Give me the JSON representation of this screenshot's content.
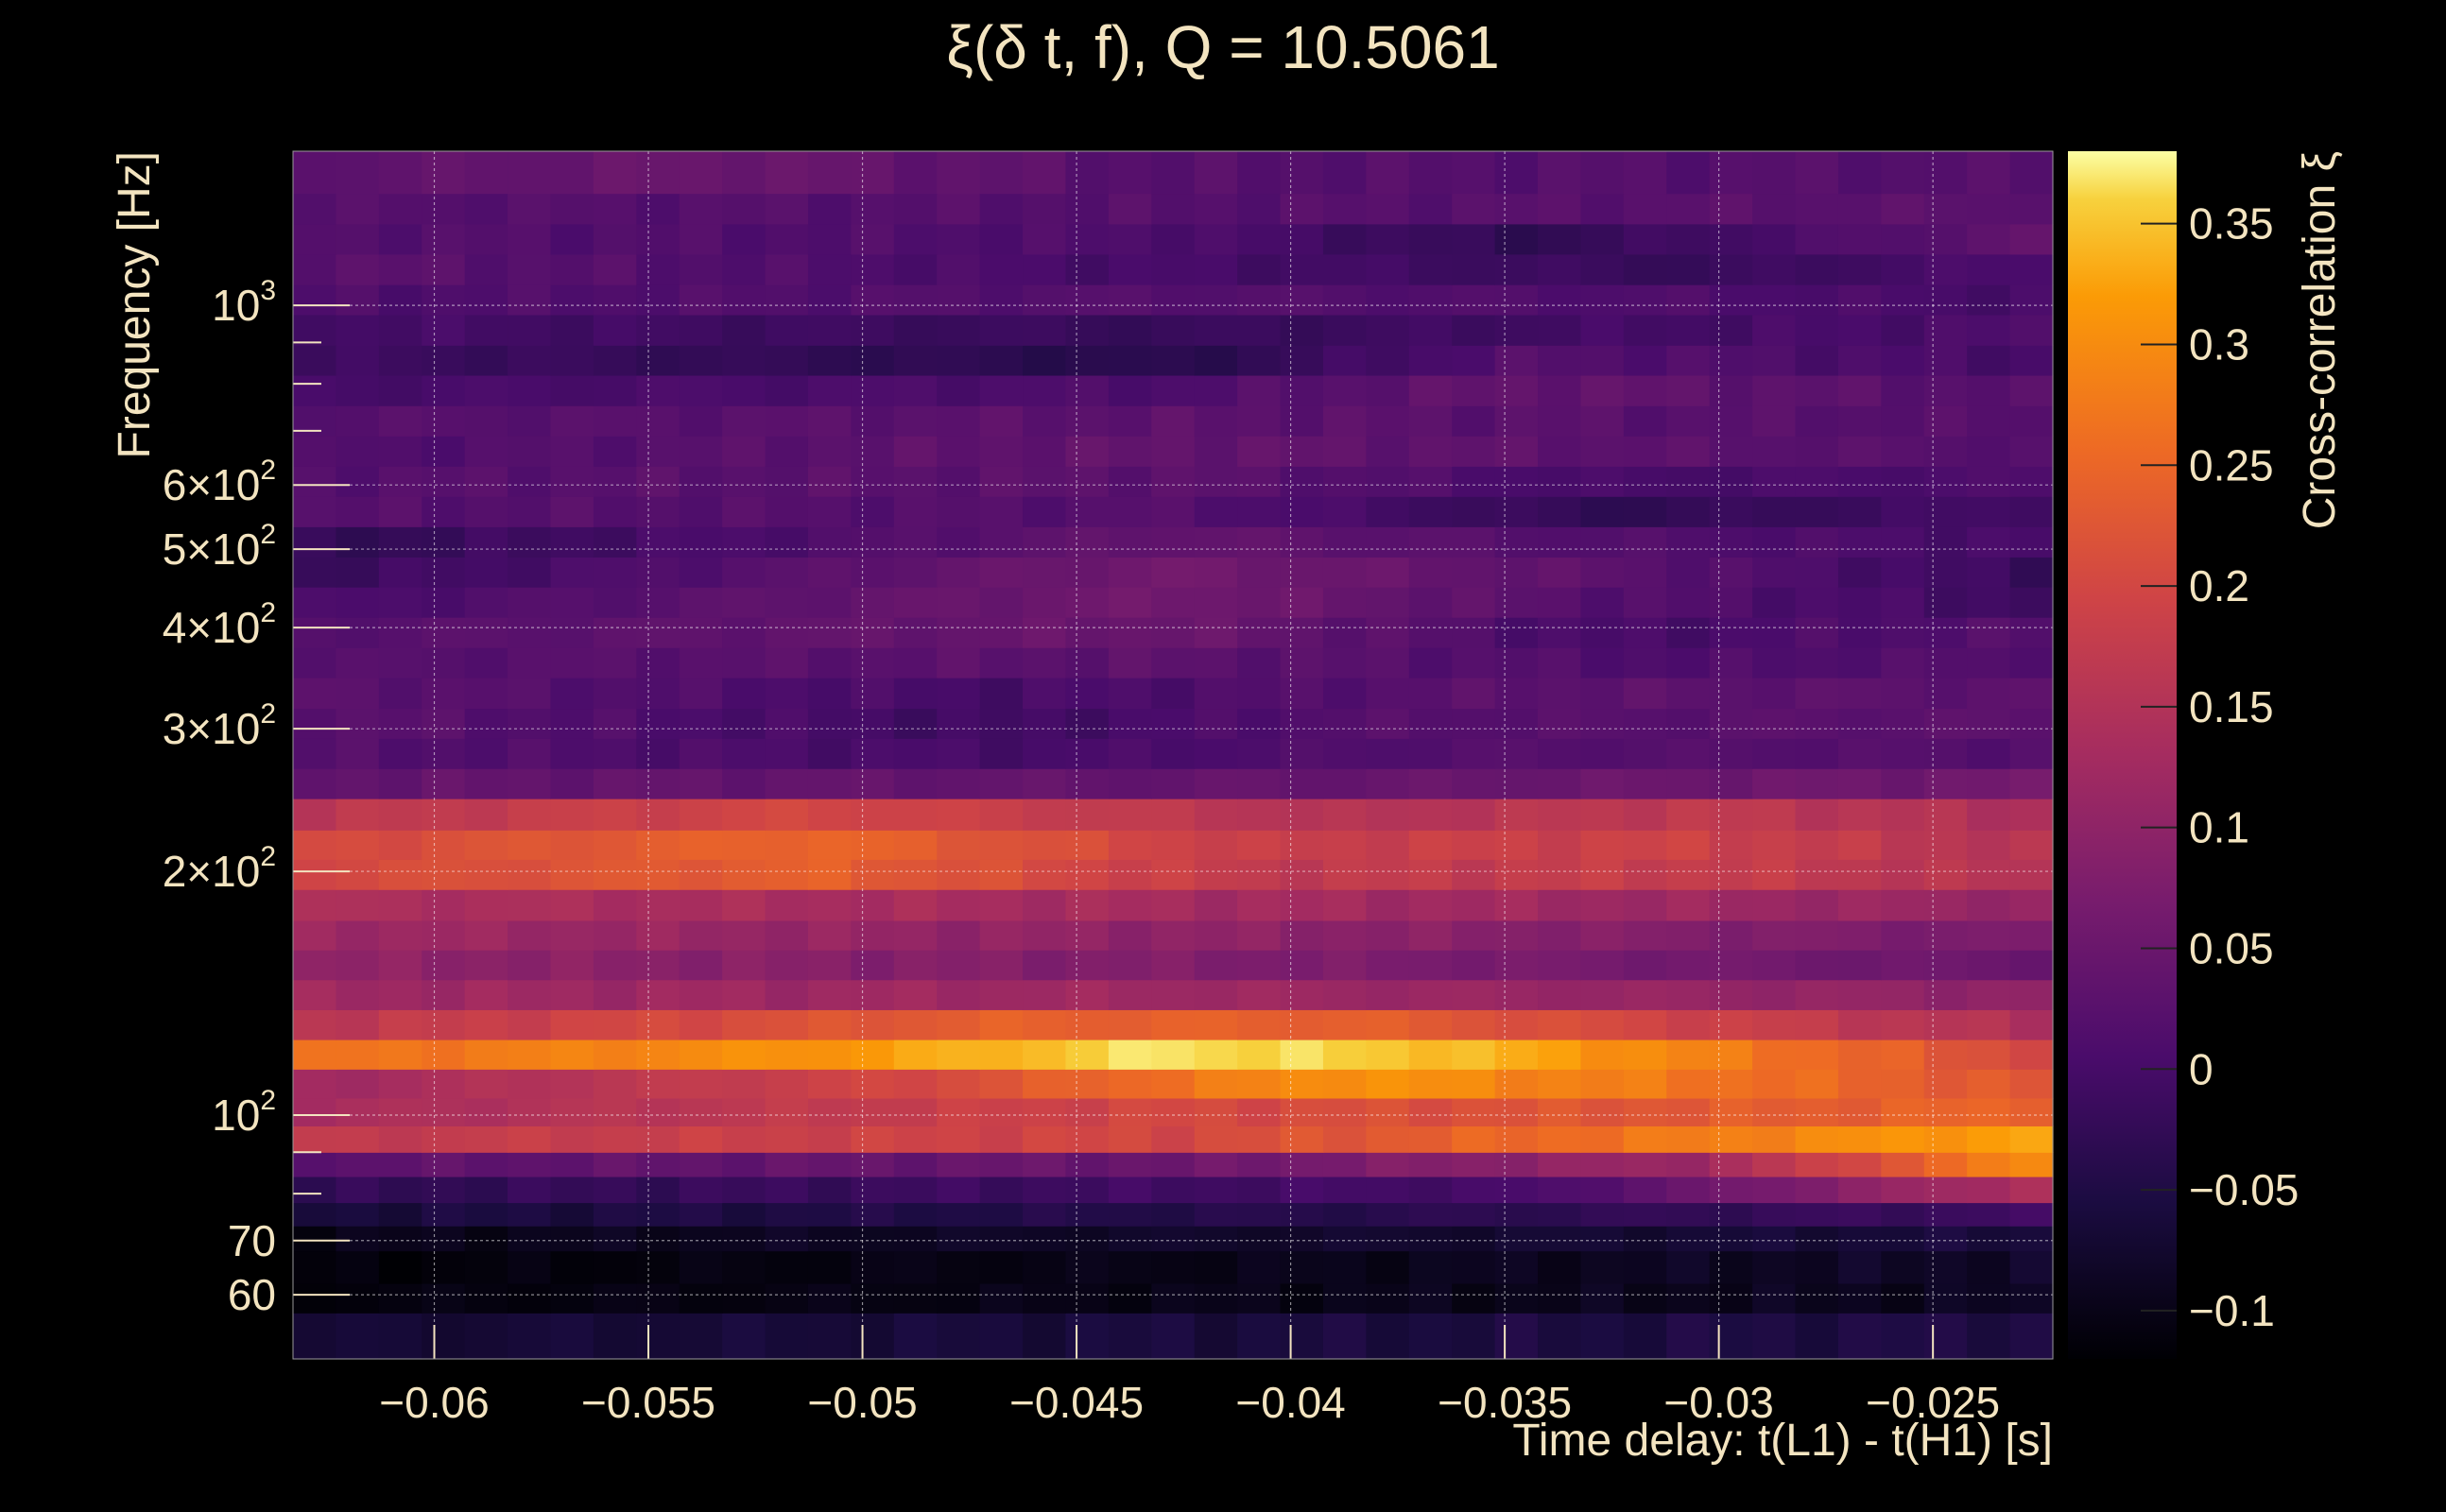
{
  "chart_data": {
    "type": "heatmap",
    "title": "ξ(δ t, f), Q = 10.5061",
    "xlabel": "Time delay: t(L1) - t(H1) [s]",
    "ylabel": "Frequency [Hz]",
    "zlabel": "Cross-correlation ξ",
    "x_range": [
      -0.0633,
      -0.0222
    ],
    "y_range": [
      50,
      1550
    ],
    "y_scale": "log",
    "z_range": [
      -0.12,
      0.38
    ],
    "x_ticks": [
      {
        "value": -0.06,
        "label": "−0.06"
      },
      {
        "value": -0.055,
        "label": "−0.055"
      },
      {
        "value": -0.05,
        "label": "−0.05"
      },
      {
        "value": -0.045,
        "label": "−0.045"
      },
      {
        "value": -0.04,
        "label": "−0.04"
      },
      {
        "value": -0.035,
        "label": "−0.035"
      },
      {
        "value": -0.03,
        "label": "−0.03"
      },
      {
        "value": -0.025,
        "label": "−0.025"
      }
    ],
    "y_ticks": [
      {
        "value": 60,
        "label": "60",
        "sup": ""
      },
      {
        "value": 70,
        "label": "70",
        "sup": ""
      },
      {
        "value": 100,
        "label": "10",
        "sup": "2"
      },
      {
        "value": 200,
        "label": "2×10",
        "sup": "2"
      },
      {
        "value": 300,
        "label": "3×10",
        "sup": "2"
      },
      {
        "value": 400,
        "label": "4×10",
        "sup": "2"
      },
      {
        "value": 500,
        "label": "5×10",
        "sup": "2"
      },
      {
        "value": 600,
        "label": "6×10",
        "sup": "2"
      },
      {
        "value": 1000,
        "label": "10",
        "sup": "3"
      }
    ],
    "z_ticks": [
      {
        "value": 0.35,
        "label": "0.35"
      },
      {
        "value": 0.3,
        "label": "0.3"
      },
      {
        "value": 0.25,
        "label": "0.25"
      },
      {
        "value": 0.2,
        "label": "0.2"
      },
      {
        "value": 0.15,
        "label": "0.15"
      },
      {
        "value": 0.1,
        "label": "0.1"
      },
      {
        "value": 0.05,
        "label": "0.05"
      },
      {
        "value": 0,
        "label": "0"
      },
      {
        "value": -0.05,
        "label": "−0.05"
      },
      {
        "value": -0.1,
        "label": "−0.1"
      }
    ],
    "rows": [
      {
        "f_low": 50,
        "f_high": 57,
        "profile": [
          [
            0,
            -0.07
          ],
          [
            1,
            -0.05
          ]
        ]
      },
      {
        "f_low": 57,
        "f_high": 62,
        "profile": [
          [
            0,
            -0.11
          ],
          [
            1,
            -0.09
          ]
        ]
      },
      {
        "f_low": 62,
        "f_high": 68,
        "profile": [
          [
            0,
            -0.115
          ],
          [
            0.5,
            -0.1
          ],
          [
            1,
            -0.08
          ]
        ]
      },
      {
        "f_low": 68,
        "f_high": 73,
        "profile": [
          [
            0,
            -0.1
          ],
          [
            1,
            -0.06
          ]
        ]
      },
      {
        "f_low": 73,
        "f_high": 78,
        "profile": [
          [
            0,
            -0.06
          ],
          [
            0.6,
            -0.04
          ],
          [
            1,
            -0.01
          ]
        ]
      },
      {
        "f_low": 78,
        "f_high": 84,
        "profile": [
          [
            0,
            -0.03
          ],
          [
            0.7,
            0.0
          ],
          [
            1,
            0.15
          ]
        ]
      },
      {
        "f_low": 84,
        "f_high": 90,
        "profile": [
          [
            0,
            0.03
          ],
          [
            0.5,
            0.05
          ],
          [
            0.8,
            0.12
          ],
          [
            1,
            0.31
          ]
        ]
      },
      {
        "f_low": 90,
        "f_high": 97,
        "profile": [
          [
            0,
            0.17
          ],
          [
            0.5,
            0.2
          ],
          [
            0.8,
            0.28
          ],
          [
            1,
            0.33
          ]
        ]
      },
      {
        "f_low": 97,
        "f_high": 105,
        "profile": [
          [
            0,
            0.13
          ],
          [
            0.5,
            0.2
          ],
          [
            1,
            0.25
          ]
        ]
      },
      {
        "f_low": 105,
        "f_high": 114,
        "profile": [
          [
            0,
            0.12
          ],
          [
            0.35,
            0.2
          ],
          [
            0.6,
            0.31
          ],
          [
            0.8,
            0.27
          ],
          [
            1,
            0.22
          ]
        ]
      },
      {
        "f_low": 114,
        "f_high": 124,
        "profile": [
          [
            0,
            0.26
          ],
          [
            0.3,
            0.31
          ],
          [
            0.5,
            0.37
          ],
          [
            0.65,
            0.35
          ],
          [
            1,
            0.2
          ]
        ]
      },
      {
        "f_low": 124,
        "f_high": 135,
        "profile": [
          [
            0,
            0.16
          ],
          [
            0.4,
            0.24
          ],
          [
            0.6,
            0.24
          ],
          [
            1,
            0.14
          ]
        ]
      },
      {
        "f_low": 135,
        "f_high": 147,
        "profile": [
          [
            0,
            0.12
          ],
          [
            0.5,
            0.12
          ],
          [
            1,
            0.1
          ]
        ]
      },
      {
        "f_low": 147,
        "f_high": 160,
        "profile": [
          [
            0,
            0.1
          ],
          [
            0.5,
            0.08
          ],
          [
            1,
            0.05
          ]
        ]
      },
      {
        "f_low": 160,
        "f_high": 174,
        "profile": [
          [
            0,
            0.12
          ],
          [
            0.5,
            0.1
          ],
          [
            1,
            0.07
          ]
        ]
      },
      {
        "f_low": 174,
        "f_high": 190,
        "profile": [
          [
            0,
            0.14
          ],
          [
            0.5,
            0.13
          ],
          [
            1,
            0.11
          ]
        ]
      },
      {
        "f_low": 190,
        "f_high": 207,
        "profile": [
          [
            0,
            0.2
          ],
          [
            0.3,
            0.24
          ],
          [
            0.55,
            0.17
          ],
          [
            0.8,
            0.18
          ],
          [
            1,
            0.15
          ]
        ]
      },
      {
        "f_low": 207,
        "f_high": 225,
        "profile": [
          [
            0,
            0.2
          ],
          [
            0.3,
            0.25
          ],
          [
            0.55,
            0.18
          ],
          [
            0.8,
            0.19
          ],
          [
            1,
            0.15
          ]
        ]
      },
      {
        "f_low": 225,
        "f_high": 246,
        "profile": [
          [
            0,
            0.16
          ],
          [
            0.3,
            0.2
          ],
          [
            0.6,
            0.15
          ],
          [
            0.8,
            0.17
          ],
          [
            1,
            0.14
          ]
        ]
      },
      {
        "f_low": 246,
        "f_high": 268,
        "profile": [
          [
            0,
            0.04
          ],
          [
            0.5,
            0.04
          ],
          [
            1,
            0.06
          ]
        ]
      },
      {
        "f_low": 268,
        "f_high": 292,
        "profile": [
          [
            0,
            0.02
          ],
          [
            0.4,
            0.0
          ],
          [
            0.7,
            0.02
          ],
          [
            1,
            0.02
          ]
        ]
      },
      {
        "f_low": 292,
        "f_high": 318,
        "profile": [
          [
            0,
            0.03
          ],
          [
            0.4,
            -0.01
          ],
          [
            0.6,
            0.02
          ],
          [
            1,
            0.03
          ]
        ]
      },
      {
        "f_low": 318,
        "f_high": 347,
        "profile": [
          [
            0,
            0.03
          ],
          [
            0.4,
            0.0
          ],
          [
            0.7,
            0.03
          ],
          [
            1,
            0.03
          ]
        ]
      },
      {
        "f_low": 347,
        "f_high": 378,
        "profile": [
          [
            0,
            0.02
          ],
          [
            0.5,
            0.03
          ],
          [
            0.8,
            0.01
          ],
          [
            1,
            0.02
          ]
        ]
      },
      {
        "f_low": 378,
        "f_high": 412,
        "profile": [
          [
            0,
            0.02
          ],
          [
            0.5,
            0.05
          ],
          [
            0.75,
            0.0
          ],
          [
            1,
            0.02
          ]
        ]
      },
      {
        "f_low": 412,
        "f_high": 449,
        "profile": [
          [
            0,
            0.0
          ],
          [
            0.5,
            0.06
          ],
          [
            0.75,
            0.02
          ],
          [
            1,
            -0.01
          ]
        ]
      },
      {
        "f_low": 449,
        "f_high": 489,
        "profile": [
          [
            0,
            -0.02
          ],
          [
            0.5,
            0.06
          ],
          [
            0.75,
            0.03
          ],
          [
            1,
            -0.02
          ]
        ]
      },
      {
        "f_low": 489,
        "f_high": 533,
        "profile": [
          [
            0,
            -0.03
          ],
          [
            0.5,
            0.04
          ],
          [
            0.7,
            0.02
          ],
          [
            1,
            0.0
          ]
        ]
      },
      {
        "f_low": 533,
        "f_high": 581,
        "profile": [
          [
            0,
            0.02
          ],
          [
            0.5,
            0.02
          ],
          [
            0.75,
            -0.03
          ],
          [
            1,
            0.0
          ]
        ]
      },
      {
        "f_low": 581,
        "f_high": 633,
        "profile": [
          [
            0,
            0.02
          ],
          [
            0.5,
            0.03
          ],
          [
            0.75,
            0.0
          ],
          [
            1,
            0.01
          ]
        ]
      },
      {
        "f_low": 633,
        "f_high": 690,
        "profile": [
          [
            0,
            0.01
          ],
          [
            0.5,
            0.04
          ],
          [
            1,
            0.02
          ]
        ]
      },
      {
        "f_low": 690,
        "f_high": 752,
        "profile": [
          [
            0,
            0.02
          ],
          [
            0.5,
            0.03
          ],
          [
            1,
            0.02
          ]
        ]
      },
      {
        "f_low": 752,
        "f_high": 820,
        "profile": [
          [
            0,
            0.0
          ],
          [
            0.5,
            0.01
          ],
          [
            0.7,
            0.04
          ],
          [
            1,
            0.02
          ]
        ]
      },
      {
        "f_low": 820,
        "f_high": 893,
        "profile": [
          [
            0,
            -0.01
          ],
          [
            0.5,
            -0.04
          ],
          [
            0.7,
            0.02
          ],
          [
            1,
            0.0
          ]
        ]
      },
      {
        "f_low": 893,
        "f_high": 974,
        "profile": [
          [
            0,
            0.0
          ],
          [
            0.5,
            -0.02
          ],
          [
            1,
            0.01
          ]
        ]
      },
      {
        "f_low": 974,
        "f_high": 1061,
        "profile": [
          [
            0,
            0.01
          ],
          [
            0.5,
            0.02
          ],
          [
            0.8,
            0.01
          ],
          [
            1,
            0.0
          ]
        ]
      },
      {
        "f_low": 1061,
        "f_high": 1157,
        "profile": [
          [
            0,
            0.03
          ],
          [
            0.5,
            0.0
          ],
          [
            0.8,
            -0.02
          ],
          [
            1,
            0.01
          ]
        ]
      },
      {
        "f_low": 1157,
        "f_high": 1261,
        "profile": [
          [
            0,
            0.02
          ],
          [
            0.5,
            0.01
          ],
          [
            0.7,
            -0.03
          ],
          [
            1,
            0.04
          ]
        ]
      },
      {
        "f_low": 1261,
        "f_high": 1375,
        "profile": [
          [
            0,
            0.02
          ],
          [
            0.5,
            0.02
          ],
          [
            1,
            0.03
          ]
        ]
      },
      {
        "f_low": 1375,
        "f_high": 1550,
        "profile": [
          [
            0,
            0.03
          ],
          [
            0.25,
            0.05
          ],
          [
            0.5,
            0.02
          ],
          [
            1,
            0.02
          ]
        ]
      }
    ],
    "grid": true,
    "legend": "colorbar-right"
  }
}
